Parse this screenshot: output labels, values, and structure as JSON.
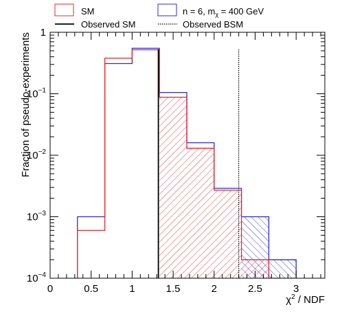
{
  "chart_data": {
    "type": "bar",
    "title": "",
    "xlabel": "χ² / NDF",
    "ylabel": "Fraction of pseudo-experiments",
    "xlim": [
      0,
      3.35
    ],
    "ylim": [
      0.0001,
      1
    ],
    "yscale": "log",
    "grid": false,
    "legend_position": "top",
    "bin_edges": [
      0.333,
      0.667,
      1.0,
      1.333,
      1.667,
      2.0,
      2.333,
      2.667,
      3.0
    ],
    "x_ticks": [
      {
        "value": 0,
        "label": "0"
      },
      {
        "value": 0.5,
        "label": "0.5"
      },
      {
        "value": 1,
        "label": "1"
      },
      {
        "value": 1.5,
        "label": "1.5"
      },
      {
        "value": 2,
        "label": "2"
      },
      {
        "value": 2.5,
        "label": "2.5"
      },
      {
        "value": 3,
        "label": "3"
      }
    ],
    "y_ticks": [
      {
        "value": 0.0001,
        "mant": "10",
        "exp": "−4"
      },
      {
        "value": 0.001,
        "mant": "10",
        "exp": "−3"
      },
      {
        "value": 0.01,
        "mant": "10",
        "exp": "−2"
      },
      {
        "value": 0.1,
        "mant": "10",
        "exp": "−1"
      },
      {
        "value": 1,
        "mant": "1",
        "exp": ""
      }
    ],
    "series": [
      {
        "name": "SM",
        "color": "#e8262d",
        "hatch_from": 1.333,
        "values": [
          0.0006,
          0.38,
          0.52,
          0.088,
          0.013,
          0.0027,
          0.0002,
          0,
          0
        ]
      },
      {
        "name_prefix": "n = 6, m",
        "name_sub": "χ",
        "name_suffix": " = 400 GeV",
        "color": "#2b2bd6",
        "hatch_from": 2.333,
        "values": [
          0.001,
          0.31,
          0.55,
          0.105,
          0.016,
          0.0029,
          0.001,
          0.0002,
          0
        ]
      }
    ],
    "lines": [
      {
        "name": "Observed SM",
        "x": 1.32,
        "style": "solid"
      },
      {
        "name": "Observed BSM",
        "x": 2.3,
        "style": "dotted"
      }
    ]
  }
}
